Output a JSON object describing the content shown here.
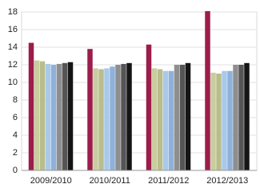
{
  "chart_data": {
    "type": "bar",
    "categories": [
      "2009/2010",
      "2010/2011",
      "2011/2012",
      "2012/2013"
    ],
    "series": [
      {
        "color": "#9c1d4b",
        "values": [
          14.5,
          13.8,
          14.3,
          18.1
        ]
      },
      {
        "color": "#c9cc9e",
        "values": [
          12.5,
          11.6,
          11.6,
          11.1
        ]
      },
      {
        "color": "#b9bd8c",
        "values": [
          12.4,
          11.5,
          11.5,
          11.0
        ]
      },
      {
        "color": "#a9c9ea",
        "values": [
          12.1,
          11.6,
          11.3,
          11.3
        ]
      },
      {
        "color": "#8fb1d9",
        "values": [
          12.0,
          11.8,
          11.3,
          11.3
        ]
      },
      {
        "color": "#8e8e8e",
        "values": [
          12.1,
          12.0,
          12.0,
          12.0
        ]
      },
      {
        "color": "#555555",
        "values": [
          12.2,
          12.1,
          12.0,
          12.0
        ]
      },
      {
        "color": "#151515",
        "values": [
          12.3,
          12.2,
          12.2,
          12.2
        ]
      }
    ],
    "ylim": [
      0,
      18
    ],
    "yticks": [
      0,
      2,
      4,
      6,
      8,
      10,
      12,
      14,
      16,
      18
    ],
    "grid": true
  }
}
